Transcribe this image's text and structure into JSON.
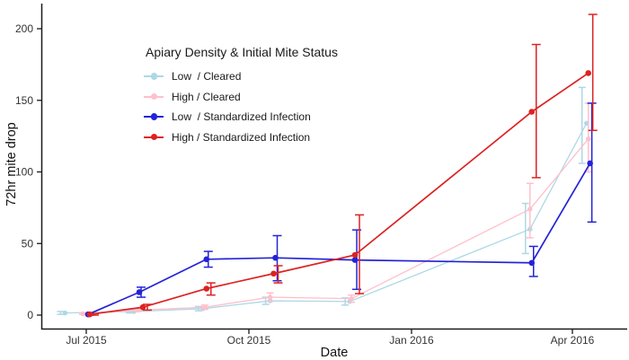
{
  "chart_data": {
    "type": "line",
    "title": "",
    "xlabel": "Date",
    "ylabel": "72hr mite drop",
    "grid": false,
    "background": "#ffffff",
    "axis_color": "#1a1a1a",
    "x_axis": {
      "unit": "days since 2015-07-01",
      "tick_days": [
        0,
        92,
        184,
        275
      ],
      "tick_labels": [
        "Jul 2015",
        "Oct 2015",
        "Jan 2016",
        "Apr 2016"
      ]
    },
    "y_axis": {
      "ticks": [
        0,
        50,
        100,
        150,
        200
      ],
      "range": [
        0,
        217
      ]
    },
    "legend": {
      "title": "Apiary Density & Initial Mite Status",
      "position": "inside-top-left"
    },
    "series": [
      {
        "key": "low-cleared",
        "label": "Low  / Cleared",
        "color": "#ADD8E6",
        "points": [
          {
            "d": -12,
            "date": "2015-06-19",
            "y": 1.5,
            "lo": 0.5,
            "hi": 2.5
          },
          {
            "d": 27,
            "date": "2015-07-28",
            "y": 2.5,
            "lo": 1.5,
            "hi": 3.5
          },
          {
            "d": 66,
            "date": "2015-09-05",
            "y": 4.5,
            "lo": 3,
            "hi": 6
          },
          {
            "d": 104,
            "date": "2015-10-13",
            "y": 10,
            "lo": 7.5,
            "hi": 12.5
          },
          {
            "d": 149,
            "date": "2015-11-27",
            "y": 9.5,
            "lo": 7,
            "hi": 12
          },
          {
            "d": 251,
            "date": "2016-03-08",
            "y": 60,
            "lo": 43,
            "hi": 78
          },
          {
            "d": 283,
            "date": "2016-04-09",
            "y": 134,
            "lo": 106,
            "hi": 159
          }
        ]
      },
      {
        "key": "high-cleared",
        "label": "High / Cleared",
        "color": "#FFC0CB",
        "points": [
          {
            "d": -2,
            "date": "2015-06-29",
            "y": 1,
            "lo": 0.5,
            "hi": 1.5
          },
          {
            "d": 29,
            "date": "2015-07-30",
            "y": 3.5,
            "lo": 2.5,
            "hi": 4.5
          },
          {
            "d": 67,
            "date": "2015-09-06",
            "y": 5.5,
            "lo": 4,
            "hi": 7
          },
          {
            "d": 104,
            "date": "2015-10-13",
            "y": 12.5,
            "lo": 9.5,
            "hi": 15.5
          },
          {
            "d": 150,
            "date": "2015-11-28",
            "y": 11.5,
            "lo": 9,
            "hi": 14
          },
          {
            "d": 251,
            "date": "2016-03-08",
            "y": 74,
            "lo": 54,
            "hi": 92
          },
          {
            "d": 284,
            "date": "2016-04-10",
            "y": 123,
            "lo": 100,
            "hi": 148
          }
        ]
      },
      {
        "key": "low-standardized-infection",
        "label": "Low  / Standardized Infection",
        "color": "#2323D7",
        "points": [
          {
            "d": 1,
            "date": "2015-07-02",
            "y": 0.5,
            "lo": 0,
            "hi": 1
          },
          {
            "d": 30,
            "date": "2015-07-31",
            "y": 16,
            "lo": 12.5,
            "hi": 19.5
          },
          {
            "d": 68,
            "date": "2015-09-07",
            "y": 39,
            "lo": 33.5,
            "hi": 44.5
          },
          {
            "d": 107,
            "date": "2015-10-16",
            "y": 40,
            "lo": 24,
            "hi": 55.5
          },
          {
            "d": 152,
            "date": "2015-11-30",
            "y": 38.5,
            "lo": 18,
            "hi": 59.5
          },
          {
            "d": 252,
            "date": "2016-03-09",
            "y": 36.5,
            "lo": 27,
            "hi": 48
          },
          {
            "d": 285,
            "date": "2016-04-11",
            "y": 106,
            "lo": 65,
            "hi": 148
          }
        ]
      },
      {
        "key": "high-standardized-infection",
        "label": "High / Standardized Infection",
        "color": "#DD2222",
        "points": [
          {
            "d": 2,
            "date": "2015-07-03",
            "y": 0.5,
            "lo": 0,
            "hi": 1
          },
          {
            "d": 32,
            "date": "2015-08-02",
            "y": 5.5,
            "lo": 3.5,
            "hi": 7.5
          },
          {
            "d": 68,
            "date": "2015-09-07",
            "y": 18.5,
            "lo": 14,
            "hi": 22.5
          },
          {
            "d": 106,
            "date": "2015-10-15",
            "y": 29,
            "lo": 22.5,
            "hi": 34.5
          },
          {
            "d": 152,
            "date": "2015-11-30",
            "y": 42,
            "lo": 15,
            "hi": 70
          },
          {
            "d": 252,
            "date": "2016-03-09",
            "y": 142,
            "lo": 96,
            "hi": 189
          },
          {
            "d": 284,
            "date": "2016-04-10",
            "y": 169,
            "lo": 129,
            "hi": 210
          }
        ]
      }
    ]
  }
}
